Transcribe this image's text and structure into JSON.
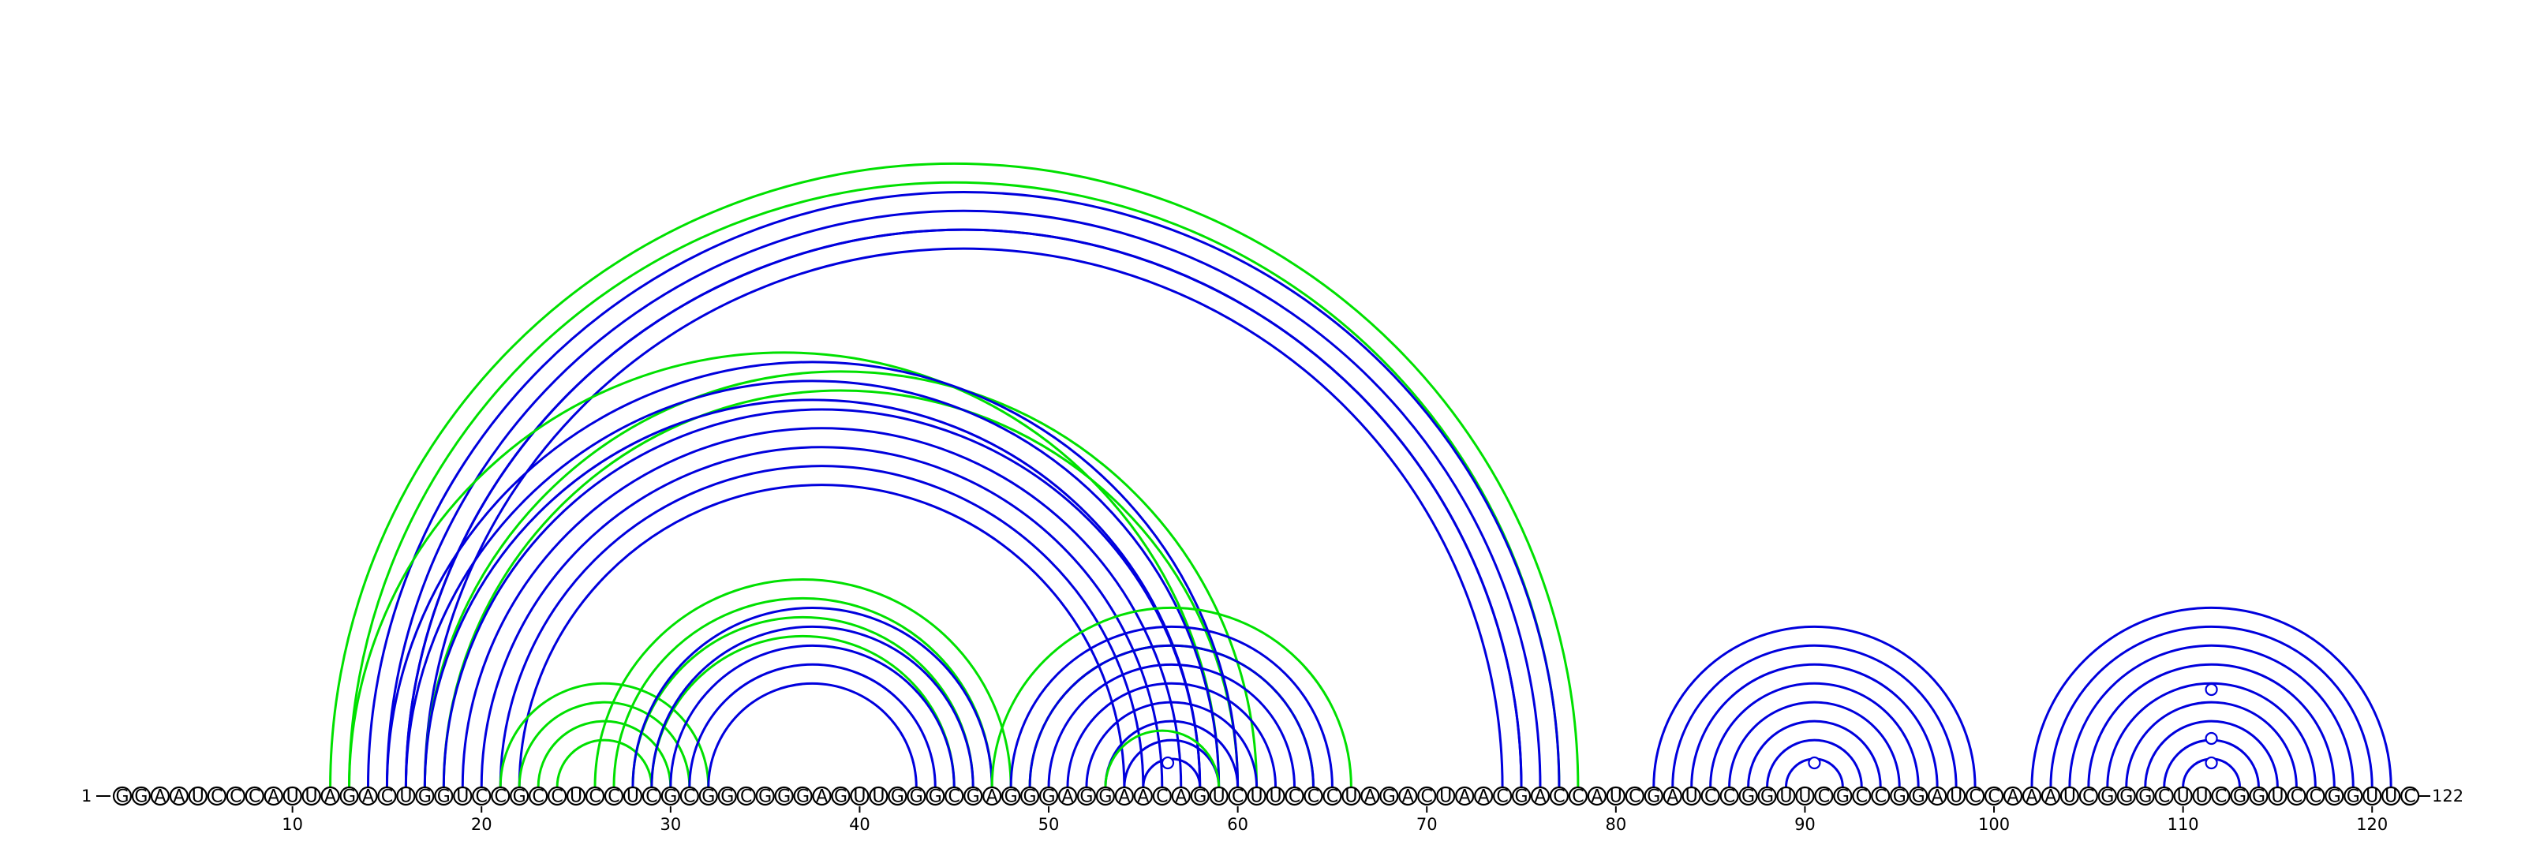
{
  "diagram": {
    "type": "rna-arc-diagram",
    "sequence": "GGAAUCCCAUUAGACUGGUCCGCCUCCUCGCGGCGGGAGUUGGGCGAGGGAGGAACAGUCUUCCCUAGACUAACGACCAUCGAUCCGGUUCGCCGGAUCCAAAUCGGGCUUCGGUCCGGUUC",
    "start_label": "1",
    "end_label": "122",
    "ticks": [
      10,
      20,
      30,
      40,
      50,
      60,
      70,
      80,
      90,
      100,
      110,
      120
    ],
    "colors": {
      "green": "#00e000",
      "blue": "#0000dd",
      "line": "#000000"
    },
    "arc_groups": [
      {
        "color": "green",
        "outer": [
          12,
          78
        ],
        "count": 2
      },
      {
        "color": "blue",
        "outer": [
          14,
          77
        ],
        "count": 3
      },
      {
        "color": "blue",
        "outer": [
          16,
          75
        ],
        "count": 2
      },
      {
        "color": "green",
        "outer": [
          13,
          59
        ],
        "count": 1
      },
      {
        "color": "green",
        "outer": [
          17,
          61
        ],
        "count": 2
      },
      {
        "color": "blue",
        "outer": [
          15,
          60
        ],
        "count": 3
      },
      {
        "color": "blue",
        "outer": [
          18,
          58
        ],
        "count": 5
      },
      {
        "color": "green",
        "outer": [
          21,
          32
        ],
        "count": 4
      },
      {
        "color": "green",
        "outer": [
          26,
          48
        ],
        "count": 4
      },
      {
        "color": "blue",
        "outer": [
          28,
          47
        ],
        "count": 5
      },
      {
        "color": "green",
        "outer": [
          47,
          66
        ],
        "count": 1
      },
      {
        "color": "green",
        "outer": [
          49,
          64
        ],
        "count": 1
      },
      {
        "color": "blue",
        "outer": [
          48,
          65
        ],
        "count": 8
      },
      {
        "color": "green",
        "outer": [
          53,
          59
        ],
        "count": 1
      },
      {
        "color": "blue",
        "outer": [
          82,
          99
        ],
        "count": 8
      },
      {
        "color": "blue",
        "outer": [
          102,
          121
        ],
        "count": 9
      }
    ],
    "markers": [
      {
        "position": 56.3,
        "row": 1,
        "color": "blue"
      },
      {
        "position": 90.5,
        "row": 1,
        "color": "blue"
      },
      {
        "position": 111.5,
        "row": 1,
        "color": "blue"
      },
      {
        "position": 111.5,
        "row": 2,
        "color": "blue"
      },
      {
        "position": 111.5,
        "row": 4,
        "color": "blue"
      }
    ]
  }
}
